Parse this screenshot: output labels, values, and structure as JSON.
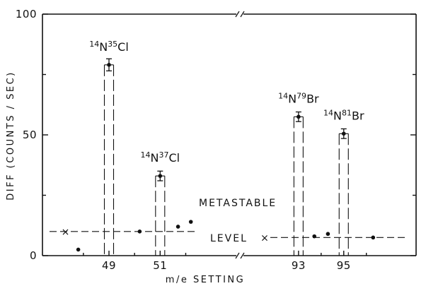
{
  "chart_data": {
    "type": "bar",
    "xlabel": "m/e SETTING",
    "ylabel": "DIFF  (COUNTS / SEC)",
    "ylim": [
      0,
      100
    ],
    "y_ticks": [
      0,
      50,
      100
    ],
    "x_ticks": [
      {
        "label": "49",
        "x": 49
      },
      {
        "label": "51",
        "x": 51
      },
      {
        "label": "93",
        "x": 93
      },
      {
        "label": "95",
        "x": 95
      }
    ],
    "x_axis_break": true,
    "grid": false,
    "series": [
      {
        "peaks": [
          {
            "x": 49,
            "label_prefix": "14",
            "label_element": "N",
            "label_mass": "35",
            "label_ion": "Cl",
            "value": 79,
            "error": 2.5
          },
          {
            "x": 51,
            "label_prefix": "14",
            "label_element": "N",
            "label_mass": "37",
            "label_ion": "Cl",
            "value": 33,
            "error": 2
          },
          {
            "x": 93,
            "label_prefix": "14",
            "label_element": "N",
            "label_mass": "79",
            "label_ion": "Br",
            "value": 57.5,
            "error": 2
          },
          {
            "x": 95,
            "label_prefix": "14",
            "label_element": "N",
            "label_mass": "81",
            "label_ion": "Br",
            "value": 50.5,
            "error": 2
          }
        ]
      }
    ],
    "background_points": [
      {
        "x": 47.8,
        "y": 2.5
      },
      {
        "x": 50.2,
        "y": 10
      },
      {
        "x": 51.7,
        "y": 12
      },
      {
        "x": 52.2,
        "y": 14
      },
      {
        "x": 93.7,
        "y": 8
      },
      {
        "x": 94.3,
        "y": 9
      },
      {
        "x": 96.3,
        "y": 7.5
      }
    ],
    "metastable": {
      "label_line1": "METASTABLE",
      "label_line2": "LEVEL",
      "left_level": 10,
      "right_level": 7.5,
      "left_marker": "×",
      "right_marker": "×",
      "left_marker_x": 47.3,
      "right_marker_x": 91.5
    }
  }
}
